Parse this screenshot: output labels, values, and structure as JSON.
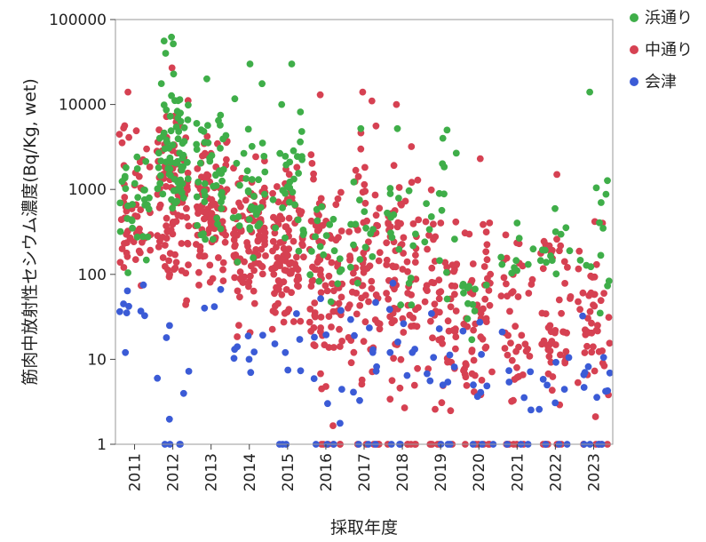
{
  "chart_data": {
    "type": "scatter",
    "title": "",
    "xlabel": "採取年度",
    "ylabel": "筋肉中放射性セシウム濃度(Bq/Kg, wet)",
    "y_scale": "log",
    "ylim": [
      1,
      100000
    ],
    "y_ticks": [
      1,
      10,
      100,
      1000,
      10000,
      100000
    ],
    "y_tick_labels": [
      "1",
      "10",
      "100",
      "1000",
      "10000",
      "100000"
    ],
    "categories": [
      "2011",
      "2012",
      "2013",
      "2014",
      "2015",
      "2016",
      "2017",
      "2018",
      "2019",
      "2020",
      "2021",
      "2022",
      "2023"
    ],
    "grid": false,
    "legend_position": "top-right",
    "series": [
      {
        "name": "浜通り",
        "color": "#3fae49",
        "notable_points": [
          {
            "x": "2012",
            "y": 62000
          },
          {
            "x": "2012",
            "y": 56000
          },
          {
            "x": "2012",
            "y": 40000
          },
          {
            "x": "2013",
            "y": 20000
          },
          {
            "x": "2014",
            "y": 30000
          },
          {
            "x": "2015",
            "y": 30000
          },
          {
            "x": "2015",
            "y": 10000
          },
          {
            "x": "2017",
            "y": 5200
          },
          {
            "x": "2018",
            "y": 5200
          },
          {
            "x": "2019",
            "y": 5000
          },
          {
            "x": "2019",
            "y": 4000
          },
          {
            "x": "2023",
            "y": 14000
          },
          {
            "x": "2023",
            "y": 700
          }
        ],
        "approx_range_by_year": {
          "2011": [
            70,
            5800
          ],
          "2012": [
            90,
            62000
          ],
          "2013": [
            70,
            20000
          ],
          "2014": [
            60,
            30000
          ],
          "2015": [
            50,
            30000
          ],
          "2016": [
            10,
            3000
          ],
          "2017": [
            10,
            5200
          ],
          "2018": [
            10,
            5200
          ],
          "2019": [
            20,
            5000
          ],
          "2020": [
            15,
            200
          ],
          "2021": [
            20,
            1000
          ],
          "2022": [
            50,
            800
          ],
          "2023": [
            20,
            14000
          ]
        }
      },
      {
        "name": "中通り",
        "color": "#d64152",
        "notable_points": [
          {
            "x": "2011",
            "y": 14000
          },
          {
            "x": "2012",
            "y": 27000
          },
          {
            "x": "2016",
            "y": 13000
          },
          {
            "x": "2017",
            "y": 14000
          },
          {
            "x": "2017",
            "y": 11000
          },
          {
            "x": "2018",
            "y": 10000
          },
          {
            "x": "2020",
            "y": 2300
          },
          {
            "x": "2022",
            "y": 1500
          }
        ],
        "approx_range_by_year": {
          "2011": [
            30,
            14000
          ],
          "2012": [
            30,
            27000
          ],
          "2013": [
            30,
            10000
          ],
          "2014": [
            10,
            6000
          ],
          "2015": [
            10,
            3000
          ],
          "2016": [
            1,
            13000
          ],
          "2017": [
            1,
            14000
          ],
          "2018": [
            1,
            10000
          ],
          "2019": [
            1,
            3000
          ],
          "2020": [
            1,
            2300
          ],
          "2021": [
            1,
            1000
          ],
          "2022": [
            1,
            1500
          ],
          "2023": [
            1,
            1000
          ]
        }
      },
      {
        "name": "会津",
        "color": "#3b5bd6",
        "notable_points": [
          {
            "x": "2011",
            "y": 12
          },
          {
            "x": "2011",
            "y": 37
          },
          {
            "x": "2011",
            "y": 75
          },
          {
            "x": "2012",
            "y": 18
          },
          {
            "x": "2012",
            "y": 25
          },
          {
            "x": "2012",
            "y": 1
          },
          {
            "x": "2014",
            "y": 7
          },
          {
            "x": "2014",
            "y": 10
          },
          {
            "x": "2015",
            "y": 12
          },
          {
            "x": "2020",
            "y": 5
          },
          {
            "x": "2023",
            "y": 7
          },
          {
            "x": "2023",
            "y": 1
          }
        ],
        "approx_range_by_year": {
          "2011": [
            12,
            140
          ],
          "2012": [
            1,
            30
          ],
          "2013": [
            30,
            100
          ],
          "2014": [
            7,
            30
          ],
          "2015": [
            1,
            150
          ],
          "2016": [
            1,
            100
          ],
          "2017": [
            1,
            250
          ],
          "2018": [
            1,
            220
          ],
          "2019": [
            1,
            130
          ],
          "2020": [
            1,
            120
          ],
          "2021": [
            1,
            25
          ],
          "2022": [
            1,
            30
          ],
          "2023": [
            1,
            50
          ]
        }
      }
    ]
  }
}
